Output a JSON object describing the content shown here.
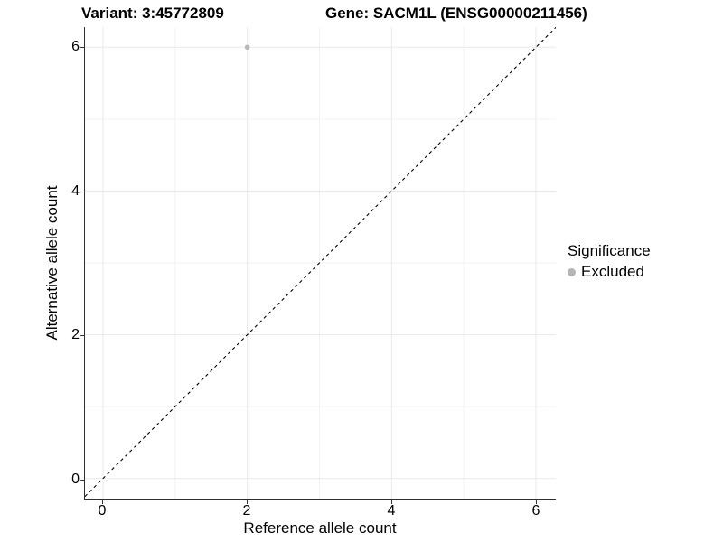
{
  "header": {
    "variant_title": "Variant: 3:45772809",
    "gene_title": "Gene: SACM1L (ENSG00000211456)"
  },
  "axes": {
    "x": {
      "label": "Reference allele count",
      "ticks": [
        "0",
        "2",
        "4",
        "6"
      ]
    },
    "y": {
      "label": "Alternative allele count",
      "ticks": [
        "0",
        "2",
        "4",
        "6"
      ]
    }
  },
  "legend": {
    "title": "Significance",
    "items": [
      {
        "label": "Excluded",
        "color": "#b8b8b8",
        "marker": "circle-icon"
      }
    ]
  },
  "colors": {
    "axis_line": "#2e2e2e",
    "tick": "#333333",
    "grid_major": "#e9e9e9",
    "grid_minor": "#f2f2f2",
    "point_excluded": "#b8b8b8",
    "reference_line": "#000000"
  },
  "chart_data": {
    "type": "scatter",
    "title": "Variant: 3:45772809   Gene: SACM1L (ENSG00000211456)",
    "xlabel": "Reference allele count",
    "ylabel": "Alternative allele count",
    "xlim": [
      -0.25,
      6.275
    ],
    "ylim": [
      -0.28,
      6.28
    ],
    "x_ticks": [
      0,
      2,
      4,
      6
    ],
    "y_ticks": [
      0,
      2,
      4,
      6
    ],
    "x_minor": [
      1,
      3,
      5
    ],
    "y_minor": [
      1,
      3,
      5
    ],
    "grid": "major+minor",
    "legend_position": "right",
    "series": [
      {
        "name": "Excluded",
        "color": "#b8b8b8",
        "point_radius": 2.8,
        "points": [
          [
            2,
            6
          ]
        ]
      }
    ],
    "reference_line": {
      "type": "identity y=x",
      "style": "dashed",
      "color": "#000000",
      "dash": "3.5,3.5"
    }
  }
}
